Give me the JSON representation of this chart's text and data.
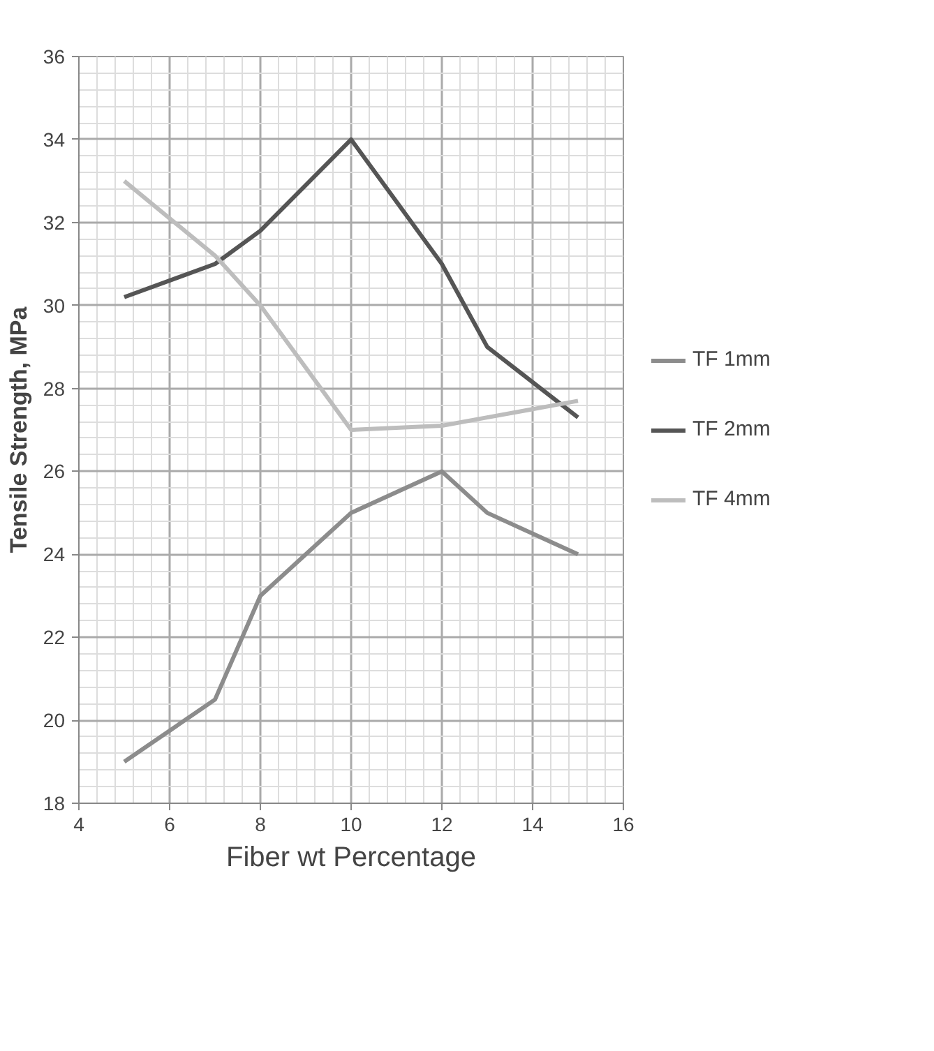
{
  "chart_data": {
    "type": "line",
    "xlabel": "Fiber wt Percentage",
    "ylabel": "Tensile Strength, MPa",
    "x": [
      5,
      7,
      8,
      10,
      12,
      13,
      15
    ],
    "series": [
      {
        "name": "TF 1mm",
        "color": "#8c8c8c",
        "values": [
          19,
          20.5,
          23,
          25,
          26,
          25,
          24
        ]
      },
      {
        "name": "TF 2mm",
        "color": "#555555",
        "values": [
          30.2,
          31,
          31.8,
          34,
          31,
          29,
          27.3
        ]
      },
      {
        "name": "TF 4mm",
        "color": "#bdbdbd",
        "values": [
          33,
          31.2,
          30,
          27,
          27.1,
          27.3,
          27.7
        ]
      }
    ],
    "xlim": [
      4,
      16
    ],
    "ylim": [
      18,
      36
    ],
    "xticks": [
      4,
      6,
      8,
      10,
      12,
      14,
      16
    ],
    "yticks": [
      18,
      20,
      22,
      24,
      26,
      28,
      30,
      32,
      34,
      36
    ],
    "grid": true,
    "legend": "right",
    "marker": "none",
    "line_style": "solid"
  }
}
